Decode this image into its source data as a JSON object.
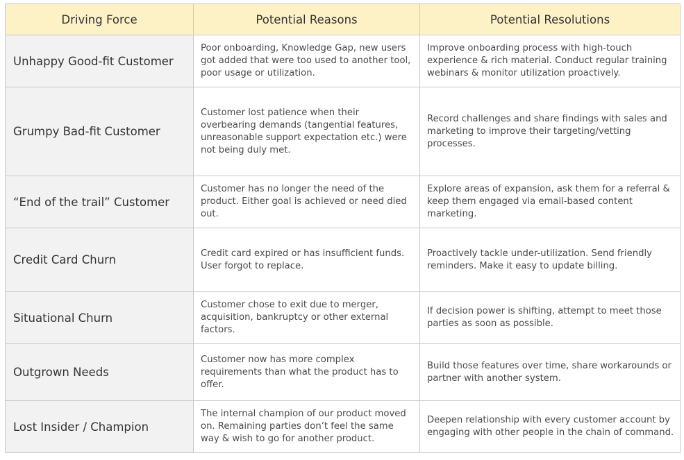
{
  "headers": {
    "driving_force": "Driving Force",
    "potential_reasons": "Potential Reasons",
    "potential_resolutions": "Potential Resolutions"
  },
  "rows": [
    {
      "force": "Unhappy Good-fit Customer",
      "reasons": "Poor onboarding, Knowledge Gap, new users got added that were too used to another tool, poor usage or utilization.",
      "resolutions": "Improve onboarding process with high-touch experience & rich material. Conduct regular training webinars & monitor utilization proactively."
    },
    {
      "force": "Grumpy Bad-fit Customer",
      "reasons": "Customer lost patience when their overbearing demands (tangential features, unreasonable support expectation etc.) were not being duly met.",
      "resolutions": "Record challenges and share findings with sales and marketing to improve their targeting/vetting processes."
    },
    {
      "force": "“End of the trail” Customer",
      "reasons": "Customer has no longer the need of the product. Either goal is achieved or need died out.",
      "resolutions": "Explore areas of expansion, ask them for a referral & keep them engaged via email-based content marketing."
    },
    {
      "force": "Credit Card Churn",
      "reasons": "Credit card expired or has insufficient funds. User forgot to replace.",
      "resolutions": "Proactively tackle under-utilization. Send friendly reminders. Make it easy to update billing."
    },
    {
      "force": "Situational Churn",
      "reasons": "Customer chose to exit due to merger, acquisition, bankruptcy or other external factors.",
      "resolutions": "If decision power is shifting, attempt to meet those parties as soon as possible."
    },
    {
      "force": "Outgrown Needs",
      "reasons": "Customer now has more complex requirements than what the product has to offer.",
      "resolutions": "Build those features over time, share workarounds or partner with another system."
    },
    {
      "force": "Lost Insider / Champion",
      "reasons": "The internal champion of our product moved on. Remaining parties don’t feel the same way & wish to go for another product.",
      "resolutions": "Deepen relationship with every customer account by engaging with other people in the chain of command."
    }
  ],
  "colors": {
    "header_bg": "#fdf1c6",
    "first_column_bg": "#f2f2f2",
    "border": "#c9c9c9",
    "text": "#3a3a3a"
  }
}
